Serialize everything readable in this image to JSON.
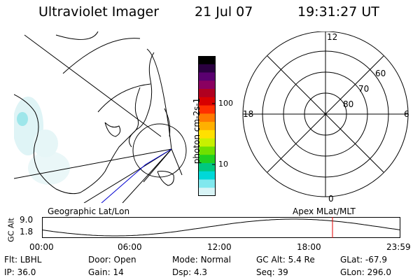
{
  "header": {
    "instrument": "Ultraviolet Imager",
    "date": "21 Jul 07",
    "time": "19:31:27 UT"
  },
  "colorbar": {
    "unit_label": "photon cm-2s-1",
    "ticks": [
      "100",
      "10"
    ],
    "colors": [
      "#000000",
      "#2a0040",
      "#5a0070",
      "#8a0060",
      "#b00020",
      "#d80000",
      "#ff3000",
      "#ff7a00",
      "#ffb000",
      "#ffe000",
      "#c8f000",
      "#70e000",
      "#20d020",
      "#00c880",
      "#00d8d8",
      "#80e8ee",
      "#d8f4f6"
    ]
  },
  "left_panel": {
    "label": "Geographic Lat/Lon"
  },
  "right_panel": {
    "label": "Apex MLat/MLT",
    "mlt_labels": {
      "top": "12",
      "right": "6",
      "bottom": "0",
      "left": "18"
    },
    "lat_labels": [
      "60",
      "70",
      "80"
    ]
  },
  "altitude_plot": {
    "ylabel": "GC Alt",
    "yticks": [
      "9.0",
      "1.8"
    ],
    "xticks": [
      "00:00",
      "06:00",
      "12:00",
      "18:00",
      "23:59"
    ],
    "cursor_color": "#e00000",
    "orbit_color": "#000000"
  },
  "status": {
    "row1": [
      {
        "label": "Flt:",
        "value": "LBHL"
      },
      {
        "label": "Door:",
        "value": "Open"
      },
      {
        "label": "Mode:",
        "value": "Normal"
      },
      {
        "label": "GC Alt:",
        "value": "5.4 Re"
      },
      {
        "label": "GLat:",
        "value": "-67.9"
      }
    ],
    "row2": [
      {
        "label": "IP:",
        "value": "36.0"
      },
      {
        "label": "Gain:",
        "value": "14"
      },
      {
        "label": "Dsp:",
        "value": "4.3"
      },
      {
        "label": "Seq:",
        "value": "39"
      },
      {
        "label": "GLon:",
        "value": "296.0"
      }
    ]
  }
}
